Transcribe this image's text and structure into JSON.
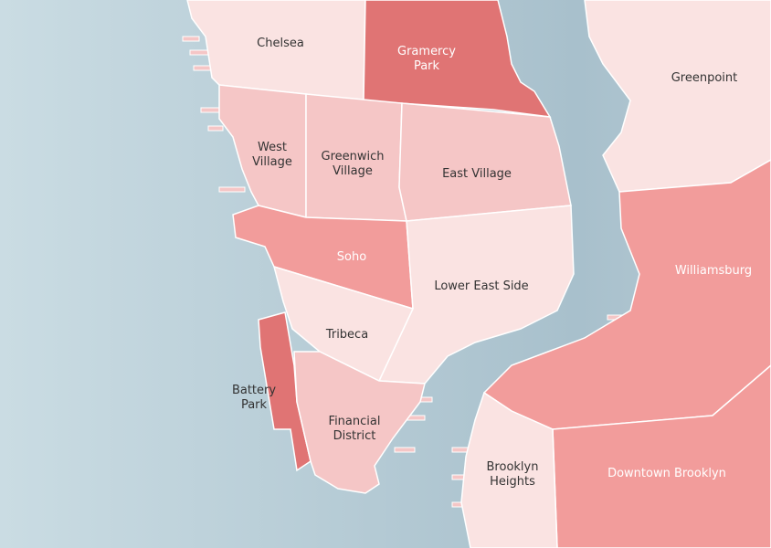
{
  "regions": [
    {
      "lines": [
        "Chelsea"
      ],
      "color": "#fae3e2"
    },
    {
      "lines": [
        "Gramercy",
        "Park"
      ],
      "color": "#e07474"
    },
    {
      "lines": [
        "Greenpoint"
      ],
      "color": "#fae3e2"
    },
    {
      "lines": [
        "West",
        "Village"
      ],
      "color": "#f5c6c6"
    },
    {
      "lines": [
        "Greenwich",
        "Village"
      ],
      "color": "#f5c6c6"
    },
    {
      "lines": [
        "East Village"
      ],
      "color": "#f5c6c6"
    },
    {
      "lines": [
        "Soho"
      ],
      "color": "#f29c9b"
    },
    {
      "lines": [
        "Lower East Side"
      ],
      "color": "#fae3e2"
    },
    {
      "lines": [
        "Tribeca"
      ],
      "color": "#fae3e2"
    },
    {
      "lines": [
        "Battery",
        "Park"
      ],
      "color": "#e07474"
    },
    {
      "lines": [
        "Financial",
        "District"
      ],
      "color": "#f5c6c6"
    },
    {
      "lines": [
        "Williamsburg"
      ],
      "color": "#f29c9b"
    },
    {
      "lines": [
        "Downtown Brooklyn"
      ],
      "color": "#f29c9b"
    },
    {
      "lines": [
        "Brooklyn",
        "Heights"
      ],
      "color": "#fae3e2"
    }
  ]
}
